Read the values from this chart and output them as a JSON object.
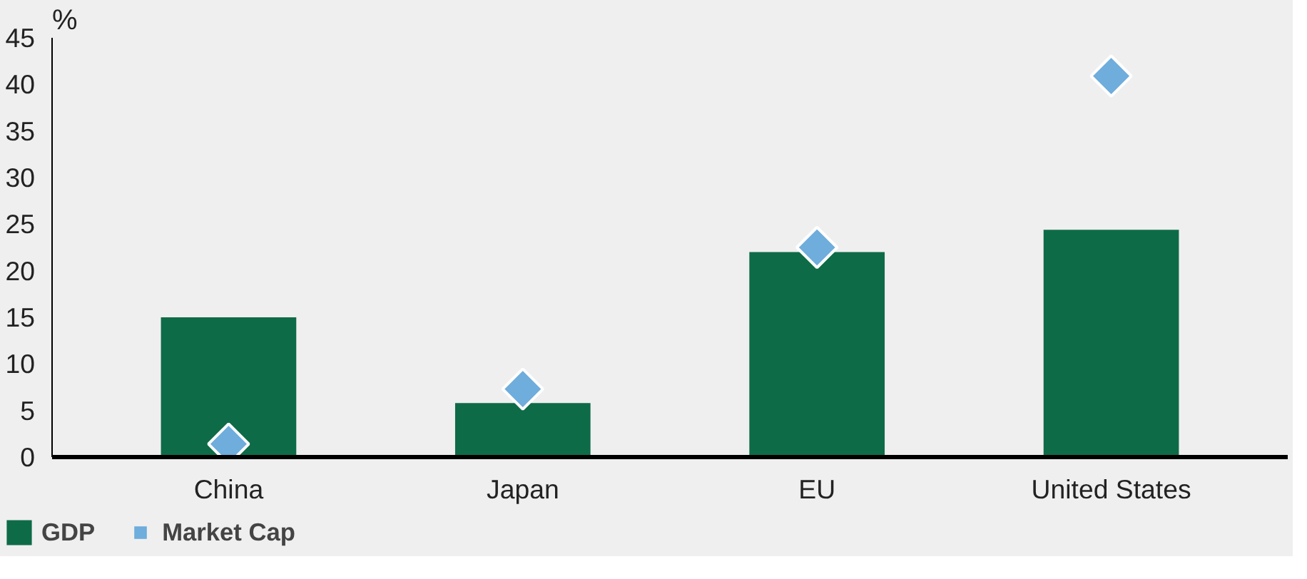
{
  "chart_data": {
    "type": "bar",
    "ylabel": "%",
    "categories": [
      "China",
      "Japan",
      "EU",
      "United States"
    ],
    "series": [
      {
        "name": "GDP",
        "color": "#0e6b47",
        "values": [
          15.0,
          5.8,
          22.0,
          24.4
        ]
      },
      {
        "name": "Market Cap",
        "type": "scatter",
        "marker": "diamond",
        "color": "#6eaddc",
        "values": [
          1.4,
          7.3,
          22.5,
          40.9
        ]
      }
    ],
    "ylim": [
      0,
      45
    ],
    "yticks": [
      0,
      5,
      10,
      15,
      20,
      25,
      30,
      35,
      40,
      45
    ],
    "grid": false,
    "legend": "bottom left"
  }
}
